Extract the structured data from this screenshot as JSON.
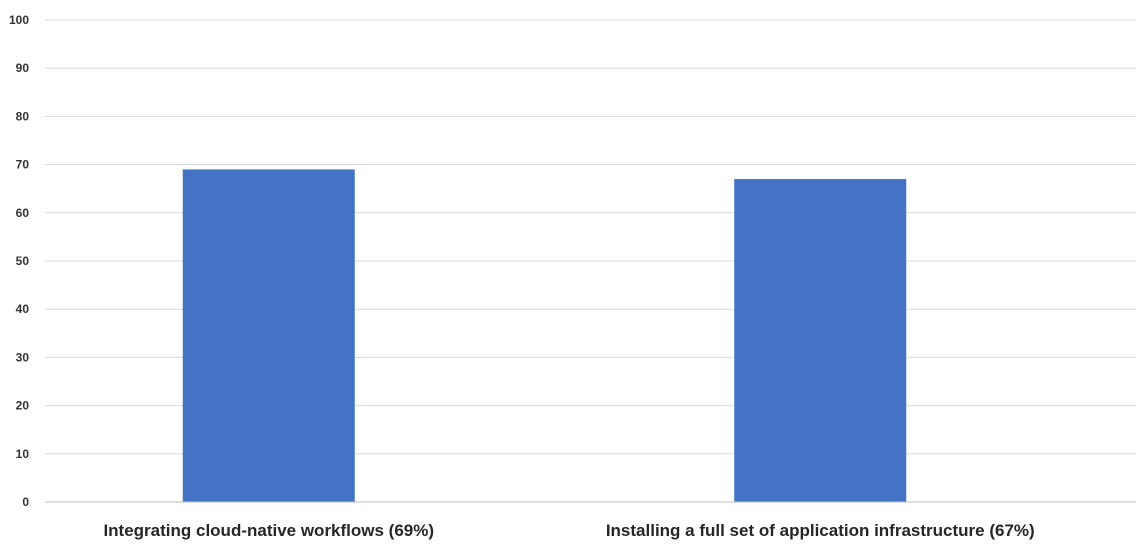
{
  "chart_data": {
    "type": "bar",
    "title": "",
    "xlabel": "",
    "ylabel": "",
    "categories": [
      "Integrating cloud-native workflows (69%)",
      "Installing a full set of application infrastructure (67%)"
    ],
    "values": [
      69,
      67
    ],
    "ylim": [
      0,
      100
    ],
    "yticks": [
      0,
      10,
      20,
      30,
      40,
      50,
      60,
      70,
      80,
      90,
      100
    ],
    "grid": true,
    "legend": "none",
    "bar_color": "#4472C4"
  }
}
